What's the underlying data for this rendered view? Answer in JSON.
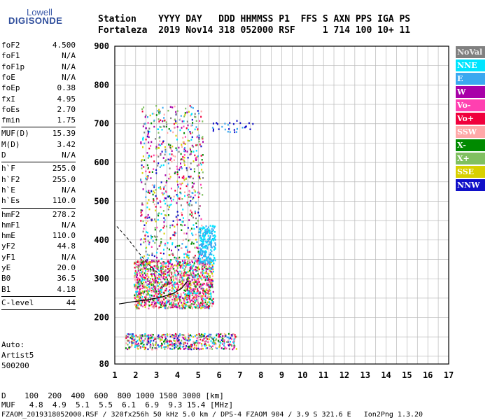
{
  "brand": {
    "line1": "Lowell",
    "line2": "DIGISONDE"
  },
  "header": {
    "row1": "Station    YYYY DAY   DDD HHMMSS P1  FFS S AXN PPS IGA PS",
    "row2": "Fortaleza  2019 Nov14 318 052000 RSF     1 714 100 10+ 11"
  },
  "params": [
    {
      "name": "foF2",
      "value": "4.500"
    },
    {
      "name": "foF1",
      "value": "N/A"
    },
    {
      "name": "foF1p",
      "value": "N/A"
    },
    {
      "name": "foE",
      "value": "N/A"
    },
    {
      "name": "foEp",
      "value": "0.38"
    },
    {
      "name": "fxI",
      "value": "4.95"
    },
    {
      "name": "foEs",
      "value": "2.70"
    },
    {
      "name": "fmin",
      "value": "1.75"
    },
    {
      "name": "MUF(D)",
      "value": "15.39"
    },
    {
      "name": "M(D)",
      "value": "3.42"
    },
    {
      "name": "D",
      "value": "N/A"
    },
    {
      "name": "h`F",
      "value": "255.0"
    },
    {
      "name": "h`F2",
      "value": "255.0"
    },
    {
      "name": "h`E",
      "value": "N/A"
    },
    {
      "name": "h`Es",
      "value": "110.0"
    },
    {
      "name": "hmF2",
      "value": "278.2"
    },
    {
      "name": "hmF1",
      "value": "N/A"
    },
    {
      "name": "hmE",
      "value": "110.0"
    },
    {
      "name": "yF2",
      "value": "44.8"
    },
    {
      "name": "yF1",
      "value": "N/A"
    },
    {
      "name": "yE",
      "value": "20.0"
    },
    {
      "name": "B0",
      "value": "36.5"
    },
    {
      "name": "B1",
      "value": "4.18"
    },
    {
      "name": "C-level",
      "value": "44"
    }
  ],
  "autoscale": {
    "line1": "Auto:",
    "line2": "Artist5",
    "line3": "500200"
  },
  "legend": [
    {
      "label": "NoVal",
      "color": "#808080"
    },
    {
      "label": "NNE",
      "color": "#00e5ff"
    },
    {
      "label": "E",
      "color": "#3aa8f0"
    },
    {
      "label": "W",
      "color": "#a800a8"
    },
    {
      "label": "Vo-",
      "color": "#ff40b0"
    },
    {
      "label": "Vo+",
      "color": "#f0003c"
    },
    {
      "label": "SSW",
      "color": "#ffa8a8"
    },
    {
      "label": "X-",
      "color": "#008a00"
    },
    {
      "label": "X+",
      "color": "#80c060"
    },
    {
      "label": "SSE",
      "color": "#d8d000"
    },
    {
      "label": "NNW",
      "color": "#1010c8"
    }
  ],
  "bottom": {
    "d_line": "D    100  200  400  600  800 1000 1500 3000 [km]",
    "muf_line": "MUF   4.8  4.9  5.1  5.5  6.1  6.9  9.3 15.4 [MHz]",
    "footer": "FZAOM_2019318052000.RSF / 320fx256h 50 kHz 5.0 km / DPS-4 FZAOM 904 / 3.9 S 321.6 E   Ion2Png 1.3.20"
  },
  "chart_data": {
    "type": "scatter",
    "xlabel": "",
    "ylabel": "",
    "xlim": [
      1,
      17
    ],
    "ylim": [
      80,
      900
    ],
    "x_ticks": [
      "1",
      "2",
      "3",
      "4",
      "5",
      "6",
      "7",
      "8",
      "9",
      "10",
      "11",
      "12",
      "13",
      "14",
      "15",
      "16",
      "17"
    ],
    "y_ticks": [
      "80",
      "200",
      "300",
      "400",
      "500",
      "600",
      "700",
      "800",
      "900"
    ],
    "grid": true,
    "echo_regions": [
      {
        "name": "F-trace",
        "x": [
          1.9,
          5.7
        ],
        "y": [
          225,
          350
        ]
      },
      {
        "name": "spread-F",
        "x": [
          2.2,
          5.2
        ],
        "y": [
          350,
          750
        ]
      },
      {
        "name": "E-cluster",
        "x": [
          5.0,
          5.8
        ],
        "y": [
          340,
          440
        ]
      },
      {
        "name": "Es-layer",
        "x": [
          1.5,
          6.8
        ],
        "y": [
          120,
          160
        ]
      },
      {
        "name": "NNW-echo",
        "x": [
          5.6,
          7.6
        ],
        "y": [
          680,
          710
        ]
      }
    ],
    "profile_curve": [
      {
        "x": 1.2,
        "y": 235
      },
      {
        "x": 1.8,
        "y": 240
      },
      {
        "x": 2.5,
        "y": 245
      },
      {
        "x": 3.2,
        "y": 252
      },
      {
        "x": 3.8,
        "y": 262
      },
      {
        "x": 4.2,
        "y": 275
      },
      {
        "x": 4.5,
        "y": 295
      }
    ],
    "profile_dashed": [
      {
        "x": 1.1,
        "y": 435
      },
      {
        "x": 1.6,
        "y": 405
      },
      {
        "x": 2.1,
        "y": 370
      },
      {
        "x": 2.6,
        "y": 338
      },
      {
        "x": 3.0,
        "y": 318
      },
      {
        "x": 3.3,
        "y": 305
      }
    ]
  }
}
